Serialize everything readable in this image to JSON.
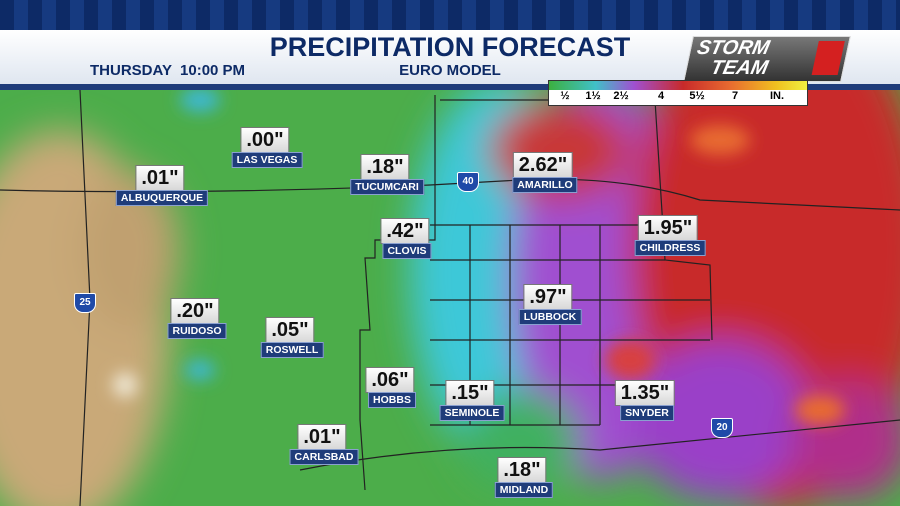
{
  "header": {
    "title": "PRECIPITATION FORECAST",
    "subtitle": "EURO MODEL",
    "time": "THURSDAY  10:00 PM",
    "logo_top": "STORM",
    "logo_bottom": "TEAM"
  },
  "legend": {
    "labels": [
      "½",
      "1½",
      "2½",
      "4",
      "5½",
      "7",
      "IN."
    ]
  },
  "highways": [
    "40",
    "25",
    "20"
  ],
  "cities": [
    {
      "value": ".00\"",
      "name": "LAS VEGAS"
    },
    {
      "value": ".01\"",
      "name": "ALBUQUERQUE"
    },
    {
      "value": ".18\"",
      "name": "TUCUMCARI"
    },
    {
      "value": "2.62\"",
      "name": "AMARILLO"
    },
    {
      "value": ".42\"",
      "name": "CLOVIS"
    },
    {
      "value": "1.95\"",
      "name": "CHILDRESS"
    },
    {
      "value": ".20\"",
      "name": "RUIDOSO"
    },
    {
      "value": ".97\"",
      "name": "LUBBOCK"
    },
    {
      "value": ".05\"",
      "name": "ROSWELL"
    },
    {
      "value": ".06\"",
      "name": "HOBBS"
    },
    {
      "value": ".15\"",
      "name": "SEMINOLE"
    },
    {
      "value": "1.35\"",
      "name": "SNYDER"
    },
    {
      "value": ".01\"",
      "name": "CARLSBAD"
    },
    {
      "value": ".18\"",
      "name": "MIDLAND"
    }
  ]
}
